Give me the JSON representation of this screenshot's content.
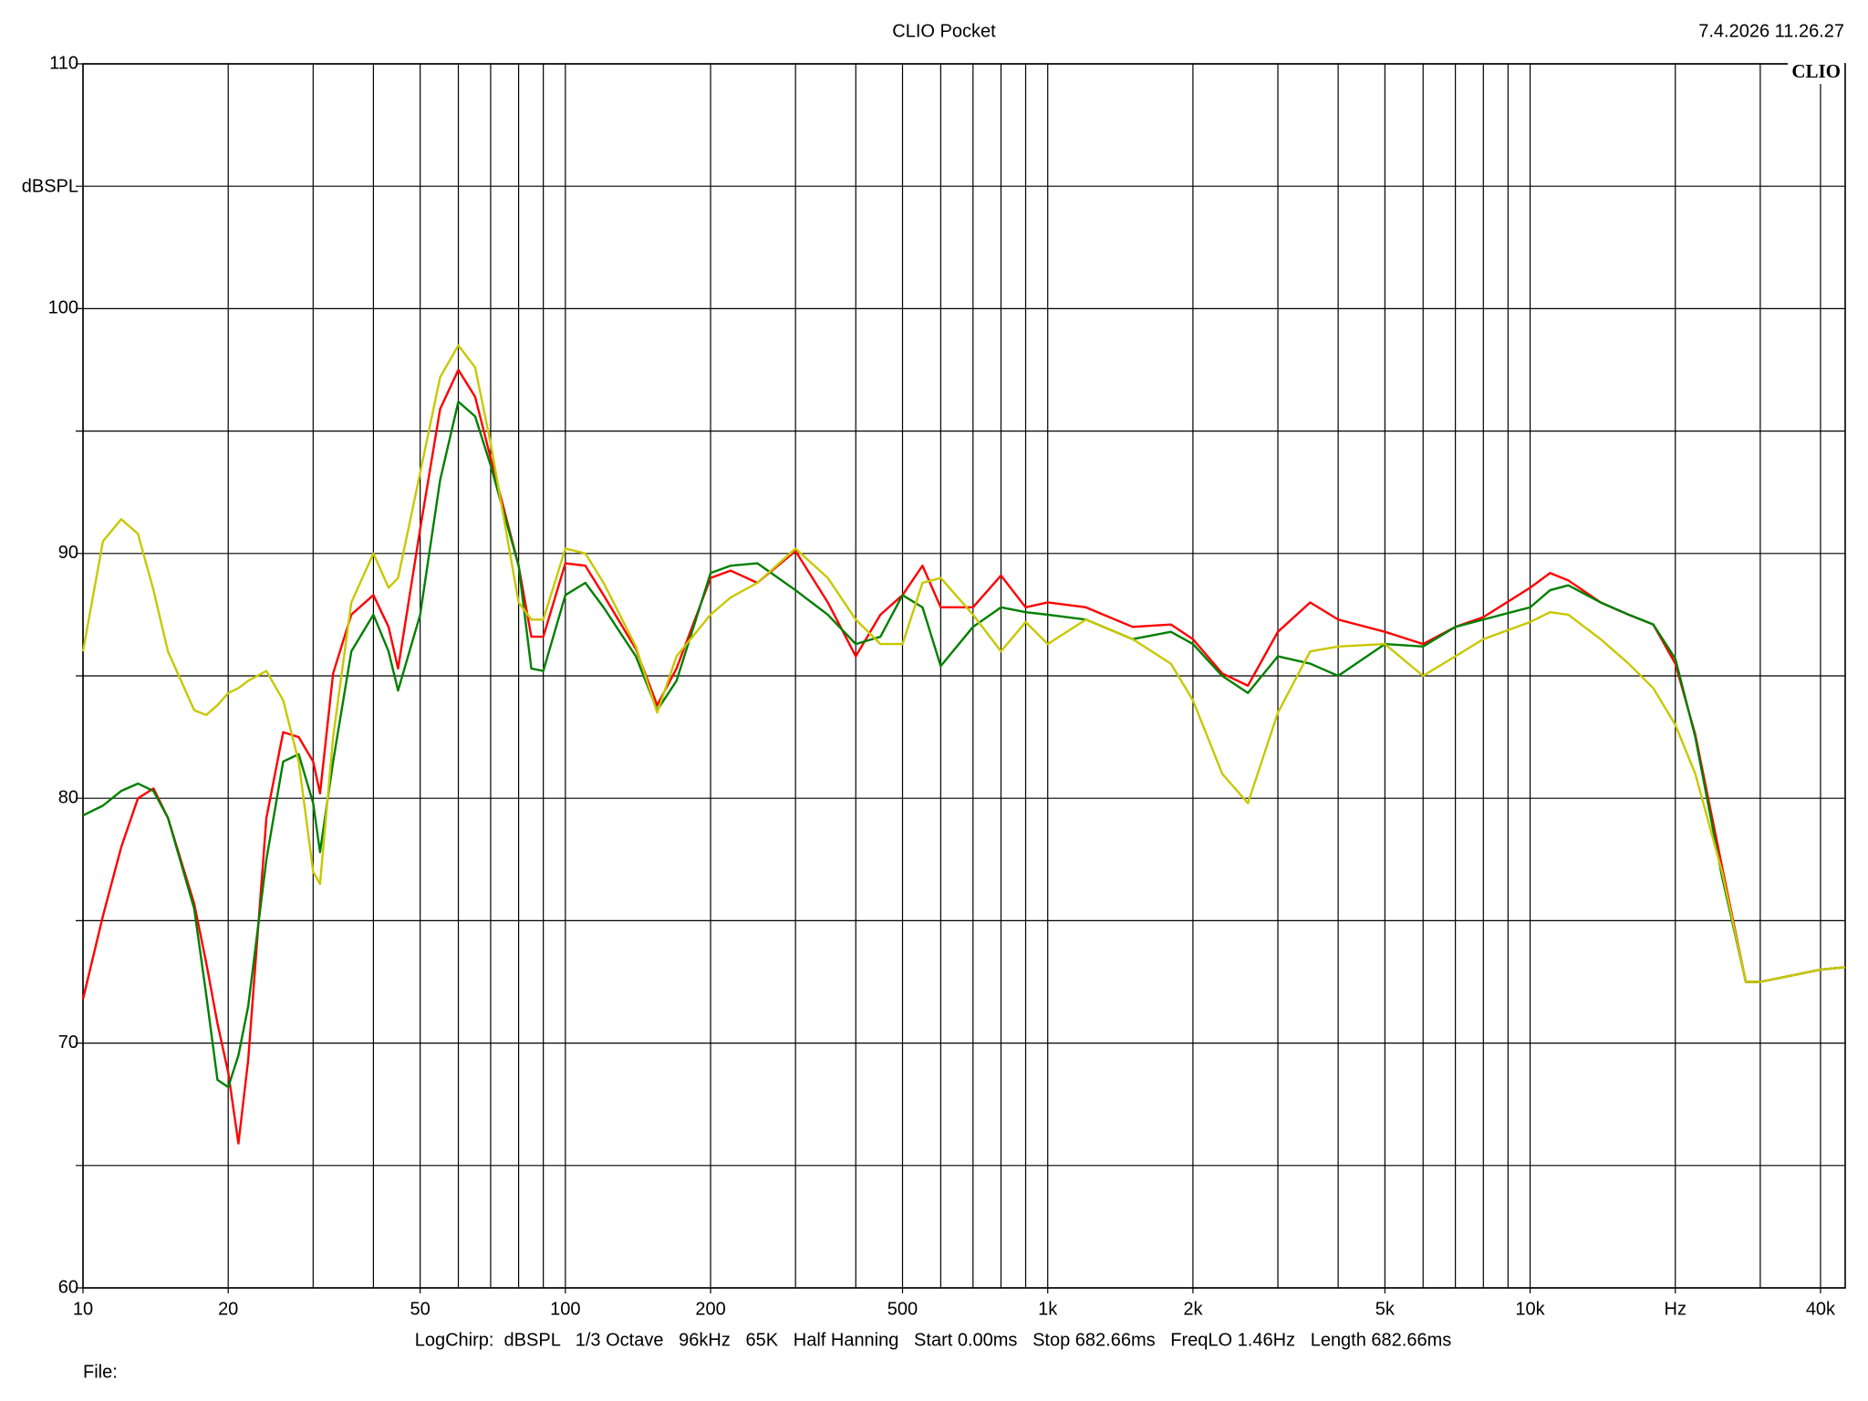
{
  "chart_data": {
    "type": "line",
    "title": "CLIO Pocket",
    "timestamp": "7.4.2026 11.26.27",
    "logo": "CLIO",
    "y_label": "dBSPL",
    "footer": "LogChirp:  dBSPL   1/3 Octave   96kHz   65K   Half Hanning   Start 0.00ms   Stop 682.66ms   FreqLO 1.46Hz   Length 682.66ms",
    "file_label": "File:",
    "x_log": true,
    "grid": true,
    "xlim": [
      10,
      45000
    ],
    "ylim": [
      60,
      110
    ],
    "xticks": [
      10,
      20,
      50,
      100,
      200,
      500,
      {
        "value": 1000,
        "label": "1k"
      },
      {
        "value": 2000,
        "label": "2k"
      },
      {
        "value": 5000,
        "label": "5k"
      },
      {
        "value": 10000,
        "label": "10k"
      },
      {
        "value": 20000,
        "label": "Hz"
      },
      {
        "value": 40000,
        "label": "40k"
      }
    ],
    "xgrid": [
      10,
      20,
      30,
      40,
      50,
      60,
      70,
      80,
      90,
      100,
      200,
      300,
      400,
      500,
      600,
      700,
      800,
      900,
      1000,
      2000,
      3000,
      4000,
      5000,
      6000,
      7000,
      8000,
      9000,
      10000,
      20000,
      30000,
      40000
    ],
    "yticks": [
      60,
      70,
      80,
      90,
      100,
      110
    ],
    "ygrid": [
      60,
      65,
      70,
      75,
      80,
      85,
      90,
      95,
      100,
      105,
      110
    ],
    "x": [
      10,
      11,
      12,
      13,
      14,
      15,
      17,
      18,
      19,
      20,
      21,
      22,
      24,
      26,
      28,
      30,
      31,
      33,
      36,
      40,
      43,
      45,
      50,
      55,
      60,
      65,
      70,
      80,
      85,
      90,
      100,
      110,
      120,
      140,
      155,
      170,
      200,
      220,
      250,
      300,
      350,
      400,
      450,
      500,
      550,
      600,
      700,
      800,
      900,
      1000,
      1200,
      1500,
      1800,
      2000,
      2300,
      2600,
      3000,
      3500,
      4000,
      5000,
      6000,
      7000,
      8000,
      10000,
      11000,
      12000,
      14000,
      16000,
      18000,
      20000,
      22000,
      25000,
      28000,
      30000,
      40000,
      45000
    ],
    "series": [
      {
        "color": "#ff0000",
        "values": [
          71.8,
          75.2,
          78,
          80,
          80.4,
          79.2,
          75.7,
          73.3,
          70.8,
          68.8,
          65.9,
          69.3,
          79.2,
          82.7,
          82.5,
          81.5,
          80.2,
          85.1,
          87.5,
          88.3,
          87,
          85.3,
          91,
          95.9,
          97.5,
          96.4,
          93.9,
          89.5,
          86.6,
          86.6,
          89.6,
          89.5,
          88.3,
          86.1,
          83.8,
          85.3,
          89,
          89.3,
          88.8,
          90.1,
          88,
          85.8,
          87.5,
          88.3,
          89.5,
          87.8,
          87.8,
          89.1,
          87.8,
          88,
          87.8,
          87,
          87.1,
          86.5,
          85.1,
          84.6,
          86.8,
          88,
          87.3,
          86.8,
          86.3,
          87,
          87.4,
          88.6,
          89.2,
          88.9,
          88,
          87.5,
          87.1,
          85.5,
          82.6,
          77.2,
          72.5,
          72.5,
          73,
          73.1
        ]
      },
      {
        "color": "#008000",
        "values": [
          79.3,
          79.7,
          80.3,
          80.6,
          80.3,
          79.2,
          75.5,
          72,
          68.5,
          68.2,
          69.5,
          71.5,
          77.5,
          81.5,
          81.8,
          79.8,
          77.8,
          81.5,
          86,
          87.5,
          86,
          84.4,
          87.5,
          93,
          96.2,
          95.6,
          93.6,
          89.5,
          85.3,
          85.2,
          88.3,
          88.8,
          87.8,
          85.8,
          83.6,
          84.8,
          89.2,
          89.5,
          89.6,
          88.5,
          87.5,
          86.3,
          86.6,
          88.3,
          87.8,
          85.4,
          87,
          87.8,
          87.6,
          87.5,
          87.3,
          86.5,
          86.8,
          86.3,
          85,
          84.3,
          85.8,
          85.5,
          85,
          86.3,
          86.2,
          87,
          87.3,
          87.8,
          88.5,
          88.7,
          88,
          87.5,
          87.1,
          85.7,
          82.5,
          76.8,
          72.5,
          72.5,
          73,
          73.1
        ]
      },
      {
        "color": "#c8c800",
        "values": [
          86,
          90.5,
          91.4,
          90.8,
          88.5,
          86,
          83.6,
          83.4,
          83.8,
          84.3,
          84.5,
          84.8,
          85.2,
          84,
          81.5,
          77,
          76.5,
          82.5,
          88,
          90,
          88.6,
          89,
          93.3,
          97.2,
          98.5,
          97.6,
          94.5,
          88,
          87.3,
          87.3,
          90.2,
          90,
          88.8,
          86.2,
          83.5,
          85.8,
          87.5,
          88.2,
          88.8,
          90.2,
          89,
          87.3,
          86.3,
          86.3,
          88.8,
          89,
          87.5,
          86,
          87.2,
          86.3,
          87.3,
          86.5,
          85.5,
          84,
          81,
          79.8,
          83.5,
          86,
          86.2,
          86.3,
          85,
          85.8,
          86.5,
          87.2,
          87.6,
          87.5,
          86.5,
          85.5,
          84.5,
          83,
          81,
          77,
          72.5,
          72.5,
          73,
          73.1
        ]
      }
    ]
  }
}
